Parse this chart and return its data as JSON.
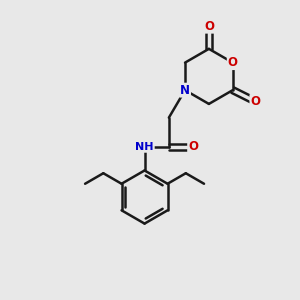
{
  "bg_color": "#e8e8e8",
  "atom_colors": {
    "C": "#000000",
    "N": "#0000cc",
    "O": "#cc0000",
    "H": "#4a8080"
  },
  "bond_color": "#1a1a1a",
  "bond_width": 1.8,
  "figsize": [
    3.0,
    3.0
  ],
  "dpi": 100
}
